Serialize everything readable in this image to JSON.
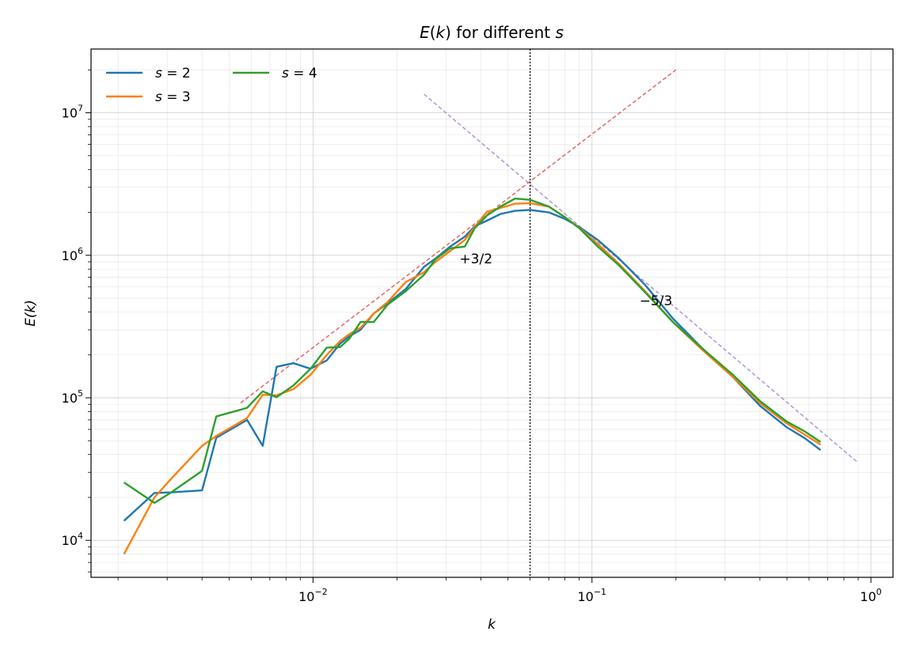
{
  "chart_data": {
    "type": "line",
    "title": "E(k) for different s",
    "xlabel": "k",
    "ylabel": "E(k)",
    "xscale": "log",
    "yscale": "log",
    "xlim": [
      0.0016,
      1.2
    ],
    "ylim": [
      5500,
      28000000
    ],
    "grid": true,
    "legend": "top-left",
    "x_ticks": [
      {
        "value": 0.01,
        "base": "10",
        "exp": "−2"
      },
      {
        "value": 0.1,
        "base": "10",
        "exp": "−1"
      },
      {
        "value": 1,
        "base": "10",
        "exp": "0"
      }
    ],
    "y_ticks": [
      {
        "value": 10000,
        "base": "10",
        "exp": "4"
      },
      {
        "value": 100000,
        "base": "10",
        "exp": "5"
      },
      {
        "value": 1000000,
        "base": "10",
        "exp": "6"
      },
      {
        "value": 10000000,
        "base": "10",
        "exp": "7"
      }
    ],
    "series": [
      {
        "name": "s = 2",
        "color": "#1f77b4",
        "points": [
          [
            0.0021,
            13700
          ],
          [
            0.0027,
            21500
          ],
          [
            0.0031,
            21700
          ],
          [
            0.004,
            22400
          ],
          [
            0.0045,
            52500
          ],
          [
            0.0058,
            70000
          ],
          [
            0.0066,
            46000
          ],
          [
            0.0074,
            165000
          ],
          [
            0.0085,
            175000
          ],
          [
            0.0098,
            160000
          ],
          [
            0.0112,
            183000
          ],
          [
            0.0125,
            240000
          ],
          [
            0.0135,
            270000
          ],
          [
            0.0148,
            300000
          ],
          [
            0.0165,
            390000
          ],
          [
            0.0185,
            460000
          ],
          [
            0.0215,
            580000
          ],
          [
            0.025,
            830000
          ],
          [
            0.0275,
            950000
          ],
          [
            0.031,
            1150000
          ],
          [
            0.035,
            1350000
          ],
          [
            0.038,
            1600000
          ],
          [
            0.042,
            1750000
          ],
          [
            0.047,
            1950000
          ],
          [
            0.053,
            2050000
          ],
          [
            0.06,
            2080000
          ],
          [
            0.07,
            2000000
          ],
          [
            0.08,
            1800000
          ],
          [
            0.09,
            1580000
          ],
          [
            0.105,
            1280000
          ],
          [
            0.125,
            950000
          ],
          [
            0.155,
            620000
          ],
          [
            0.195,
            360000
          ],
          [
            0.25,
            220000
          ],
          [
            0.32,
            140000
          ],
          [
            0.4,
            88000
          ],
          [
            0.5,
            62000
          ],
          [
            0.58,
            52000
          ],
          [
            0.66,
            43000
          ]
        ]
      },
      {
        "name": "s = 3",
        "color": "#ff7f0e",
        "points": [
          [
            0.0021,
            8000
          ],
          [
            0.0027,
            20000
          ],
          [
            0.0031,
            27000
          ],
          [
            0.004,
            46000
          ],
          [
            0.0045,
            54000
          ],
          [
            0.0058,
            72000
          ],
          [
            0.0066,
            105000
          ],
          [
            0.0074,
            104000
          ],
          [
            0.0085,
            115000
          ],
          [
            0.0098,
            145000
          ],
          [
            0.0112,
            200000
          ],
          [
            0.0125,
            250000
          ],
          [
            0.0135,
            280000
          ],
          [
            0.0148,
            310000
          ],
          [
            0.0165,
            390000
          ],
          [
            0.0185,
            470000
          ],
          [
            0.0215,
            650000
          ],
          [
            0.025,
            760000
          ],
          [
            0.0275,
            900000
          ],
          [
            0.031,
            1070000
          ],
          [
            0.035,
            1280000
          ],
          [
            0.038,
            1580000
          ],
          [
            0.042,
            2020000
          ],
          [
            0.047,
            2150000
          ],
          [
            0.053,
            2300000
          ],
          [
            0.06,
            2320000
          ],
          [
            0.07,
            2200000
          ],
          [
            0.08,
            1850000
          ],
          [
            0.09,
            1560000
          ],
          [
            0.105,
            1200000
          ],
          [
            0.125,
            870000
          ],
          [
            0.155,
            560000
          ],
          [
            0.195,
            340000
          ],
          [
            0.25,
            215000
          ],
          [
            0.32,
            140000
          ],
          [
            0.4,
            92000
          ],
          [
            0.5,
            66000
          ],
          [
            0.58,
            55000
          ],
          [
            0.66,
            47000
          ]
        ]
      },
      {
        "name": "s = 4",
        "color": "#2ca02c",
        "points": [
          [
            0.0021,
            25500
          ],
          [
            0.0027,
            18300
          ],
          [
            0.0031,
            21700
          ],
          [
            0.004,
            30700
          ],
          [
            0.0045,
            74000
          ],
          [
            0.0058,
            85000
          ],
          [
            0.0066,
            111000
          ],
          [
            0.0074,
            101000
          ],
          [
            0.0085,
            122000
          ],
          [
            0.0098,
            160000
          ],
          [
            0.0112,
            225000
          ],
          [
            0.0125,
            227000
          ],
          [
            0.0135,
            260000
          ],
          [
            0.0148,
            340000
          ],
          [
            0.0165,
            340000
          ],
          [
            0.0185,
            450000
          ],
          [
            0.0215,
            560000
          ],
          [
            0.025,
            730000
          ],
          [
            0.0275,
            940000
          ],
          [
            0.031,
            1120000
          ],
          [
            0.035,
            1150000
          ],
          [
            0.038,
            1550000
          ],
          [
            0.042,
            1900000
          ],
          [
            0.047,
            2200000
          ],
          [
            0.053,
            2500000
          ],
          [
            0.06,
            2450000
          ],
          [
            0.07,
            2200000
          ],
          [
            0.08,
            1850000
          ],
          [
            0.09,
            1550000
          ],
          [
            0.105,
            1150000
          ],
          [
            0.125,
            850000
          ],
          [
            0.155,
            550000
          ],
          [
            0.195,
            340000
          ],
          [
            0.25,
            220000
          ],
          [
            0.32,
            145000
          ],
          [
            0.4,
            95000
          ],
          [
            0.5,
            68000
          ],
          [
            0.58,
            58000
          ],
          [
            0.66,
            49000
          ]
        ]
      }
    ],
    "reference_lines": [
      {
        "color": "#d62728",
        "style": "dashed",
        "points": [
          [
            0.0055,
            92000
          ],
          [
            0.2,
            20000000
          ]
        ]
      },
      {
        "color": "#9467bd",
        "style": "dashed",
        "points": [
          [
            0.025,
            13500000
          ],
          [
            0.9,
            35000
          ]
        ]
      }
    ],
    "vline": {
      "x": 0.06,
      "color": "#000000",
      "style": "dotted"
    },
    "annotations": [
      {
        "text": "+3/2",
        "x": 0.0335,
        "y": 950000
      },
      {
        "text": "−5/3",
        "x": 0.148,
        "y": 480000
      }
    ]
  }
}
